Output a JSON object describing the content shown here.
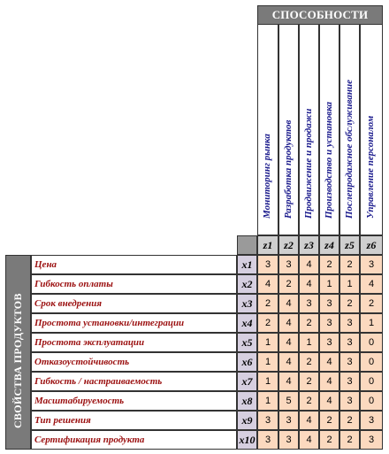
{
  "header": {
    "capabilities_title": "СПОСОБНОСТИ"
  },
  "left_band": {
    "title": "СВОЙСТВА ПРОДУКТОВ"
  },
  "capabilities": [
    {
      "z": "z1",
      "name": "Мониторинг рынка"
    },
    {
      "z": "z2",
      "name": "Разработка продуктов"
    },
    {
      "z": "z3",
      "name": "Продвижение и продажи"
    },
    {
      "z": "z4",
      "name": "Производство и установка"
    },
    {
      "z": "z5",
      "name": "Послепродажное обслуживание"
    },
    {
      "z": "z6",
      "name": "Управление персоналом"
    }
  ],
  "rows": [
    {
      "name": "Цена",
      "x": "x1",
      "values": [
        "3",
        "3",
        "4",
        "2",
        "2",
        "3"
      ]
    },
    {
      "name": "Гибкость оплаты",
      "x": "x2",
      "values": [
        "4",
        "2",
        "4",
        "1",
        "1",
        "4"
      ]
    },
    {
      "name": "Срок внедрения",
      "x": "x3",
      "values": [
        "2",
        "4",
        "3",
        "3",
        "2",
        "2"
      ]
    },
    {
      "name": "Простота установки/интеграции",
      "x": "x4",
      "values": [
        "2",
        "4",
        "2",
        "3",
        "3",
        "1"
      ]
    },
    {
      "name": "Простота эксплуатации",
      "x": "x5",
      "values": [
        "1",
        "4",
        "1",
        "3",
        "3",
        "0"
      ]
    },
    {
      "name": "Отказоустойчивость",
      "x": "x6",
      "values": [
        "1",
        "4",
        "2",
        "4",
        "3",
        "0"
      ]
    },
    {
      "name": "Гибкость / настраиваемость",
      "x": "x7",
      "values": [
        "1",
        "4",
        "2",
        "4",
        "3",
        "0"
      ]
    },
    {
      "name": "Масштабируемость",
      "x": "x8",
      "values": [
        "1",
        "5",
        "2",
        "4",
        "3",
        "0"
      ]
    },
    {
      "name": "Тип решения",
      "x": "x9",
      "values": [
        "3",
        "3",
        "4",
        "2",
        "2",
        "3"
      ]
    },
    {
      "name": "Сертификация продукта",
      "x": "x10",
      "values": [
        "3",
        "3",
        "4",
        "2",
        "2",
        "3"
      ]
    }
  ]
}
